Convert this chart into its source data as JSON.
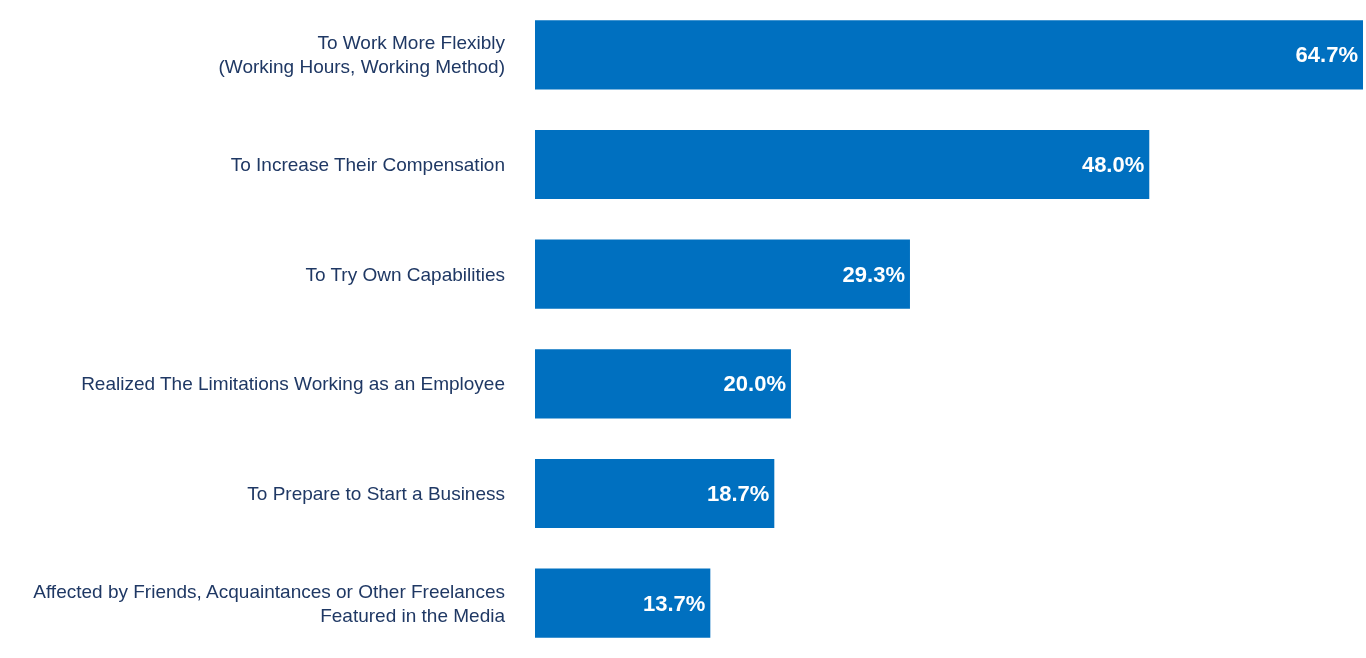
{
  "chart_data": {
    "type": "bar",
    "orientation": "horizontal",
    "categories": [
      "To Work More Flexibly\n(Working Hours, Working Method)",
      "To Increase Their Compensation",
      "To Try Own Capabilities",
      "Realized The Limitations Working as an Employee",
      "To Prepare to Start a Business",
      "Affected by Friends, Acquaintances or Other Freelances\nFeatured in the Media"
    ],
    "values": [
      64.7,
      48.0,
      29.3,
      20.0,
      18.7,
      13.7
    ],
    "value_labels": [
      "64.7%",
      "48.0%",
      "29.3%",
      "20.0%",
      "18.7%",
      "13.7%"
    ],
    "color": "#0070c0",
    "grid": false
  }
}
